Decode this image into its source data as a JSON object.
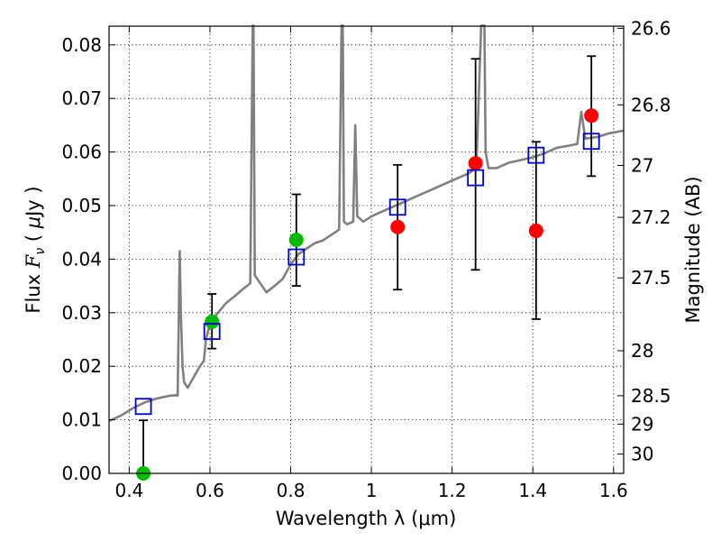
{
  "chart_data": {
    "type": "scatter",
    "title": "",
    "xlabel": "Wavelength  λ (μm)",
    "ylabel": "Flux  F_ν  ( μJy )",
    "ylabel_parts": [
      "Flux  ",
      "F",
      "ν",
      "  ( ",
      "μ",
      "Jy )"
    ],
    "y2label": "Magnitude (AB)",
    "xlim": [
      0.35,
      1.625
    ],
    "ylim": [
      0,
      0.0835
    ],
    "grid": true,
    "x_ticks": [
      0.4,
      0.6,
      0.8,
      1.0,
      1.2,
      1.4,
      1.6
    ],
    "x_tick_labels": [
      "0.4",
      "0.6",
      "0.8",
      "1",
      "1.2",
      "1.4",
      "1.6"
    ],
    "y_ticks": [
      0.0,
      0.01,
      0.02,
      0.03,
      0.04,
      0.05,
      0.06,
      0.07,
      0.08
    ],
    "y_tick_labels": [
      "0.00",
      "0.01",
      "0.02",
      "0.03",
      "0.04",
      "0.05",
      "0.06",
      "0.07",
      "0.08"
    ],
    "y2_ticks": [
      {
        "label": "26.6",
        "flux": 0.0831
      },
      {
        "label": "26.8",
        "flux": 0.0688
      },
      {
        "label": "27",
        "flux": 0.0575
      },
      {
        "label": "27.2",
        "flux": 0.0478
      },
      {
        "label": "27.5",
        "flux": 0.0365
      },
      {
        "label": "28",
        "flux": 0.0229
      },
      {
        "label": "28.5",
        "flux": 0.0145
      },
      {
        "label": "29",
        "flux": 0.0092
      },
      {
        "label": "30",
        "flux": 0.0036
      }
    ],
    "series": [
      {
        "type": "line",
        "color": "#808080",
        "x": [
          0.35,
          0.38,
          0.41,
          0.44,
          0.47,
          0.5,
          0.515,
          0.52,
          0.525,
          0.528,
          0.532,
          0.536,
          0.545,
          0.56,
          0.575,
          0.585,
          0.59,
          0.6,
          0.62,
          0.64,
          0.66,
          0.68,
          0.7,
          0.706,
          0.708,
          0.711,
          0.72,
          0.74,
          0.76,
          0.78,
          0.8,
          0.82,
          0.84,
          0.86,
          0.88,
          0.9,
          0.92,
          0.926,
          0.929,
          0.932,
          0.94,
          0.955,
          0.96,
          0.965,
          0.98,
          1.0,
          1.03,
          1.06,
          1.09,
          1.12,
          1.15,
          1.18,
          1.21,
          1.24,
          1.26,
          1.272,
          1.276,
          1.28,
          1.283,
          1.29,
          1.31,
          1.34,
          1.37,
          1.4,
          1.43,
          1.46,
          1.49,
          1.51,
          1.52,
          1.53,
          1.56,
          1.59,
          1.625
        ],
        "y": [
          0.0098,
          0.0108,
          0.0122,
          0.0133,
          0.014,
          0.0145,
          0.0146,
          0.0145,
          0.0415,
          0.03,
          0.02,
          0.017,
          0.016,
          0.018,
          0.02,
          0.021,
          0.025,
          0.028,
          0.03,
          0.0318,
          0.033,
          0.0343,
          0.0355,
          0.0836,
          0.0836,
          0.037,
          0.036,
          0.0338,
          0.035,
          0.0363,
          0.039,
          0.041,
          0.042,
          0.043,
          0.0435,
          0.0445,
          0.0455,
          0.0836,
          0.0836,
          0.047,
          0.0465,
          0.047,
          0.065,
          0.048,
          0.047,
          0.048,
          0.049,
          0.05,
          0.051,
          0.052,
          0.053,
          0.054,
          0.055,
          0.056,
          0.057,
          0.0836,
          0.0836,
          0.0836,
          0.06,
          0.057,
          0.057,
          0.058,
          0.0585,
          0.059,
          0.0598,
          0.0608,
          0.0612,
          0.0615,
          0.0675,
          0.0625,
          0.0628,
          0.0635,
          0.064
        ]
      },
      {
        "type": "scatter",
        "marker": "circle",
        "color": "#00bb00",
        "x": [
          0.435,
          0.605,
          0.814
        ],
        "y": [
          0.0,
          0.0283,
          0.0436
        ]
      },
      {
        "type": "scatter",
        "marker": "circle",
        "color": "#ff0000",
        "x": [
          1.065,
          1.258,
          1.408,
          1.545
        ],
        "y": [
          0.046,
          0.0579,
          0.0453,
          0.0668
        ]
      },
      {
        "type": "scatter",
        "marker": "square",
        "color": "#0000cc",
        "x": [
          0.435,
          0.605,
          0.814,
          1.065,
          1.258,
          1.408,
          1.545
        ],
        "y": [
          0.0125,
          0.0265,
          0.0404,
          0.0497,
          0.0552,
          0.0594,
          0.062
        ]
      }
    ],
    "error_bars": [
      {
        "x": 0.435,
        "low": 0.0,
        "high": 0.0099
      },
      {
        "x": 0.605,
        "low": 0.0233,
        "high": 0.0335
      },
      {
        "x": 0.814,
        "low": 0.035,
        "high": 0.0521
      },
      {
        "x": 1.065,
        "low": 0.0343,
        "high": 0.0576
      },
      {
        "x": 1.258,
        "low": 0.038,
        "high": 0.0774
      },
      {
        "x": 1.408,
        "low": 0.0288,
        "high": 0.0619
      },
      {
        "x": 1.545,
        "low": 0.0555,
        "high": 0.0779
      }
    ]
  }
}
